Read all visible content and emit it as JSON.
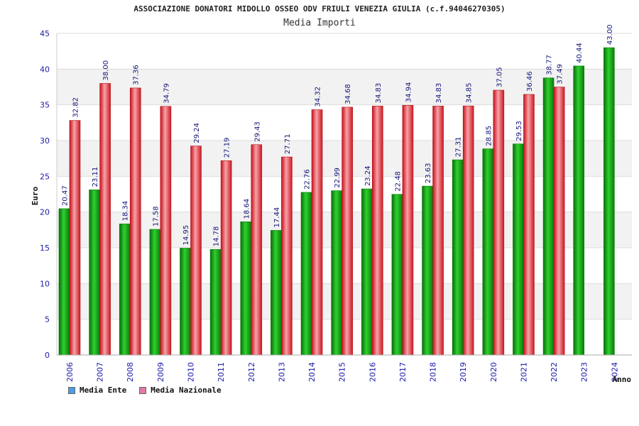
{
  "header": {
    "title": "ASSOCIAZIONE DONATORI MIDOLLO OSSEO ODV FRIULI VENEZIA GIULIA (c.f.94046270305)",
    "subtitle": "Media Importi"
  },
  "legend": {
    "items": [
      {
        "label": "Media Ente",
        "color": "#4d9be6"
      },
      {
        "label": "Media Nazionale",
        "color": "#e07aa8"
      }
    ]
  },
  "chart_data": {
    "type": "bar",
    "title": "Media Importi",
    "xlabel": "Anno",
    "ylabel": "Euro",
    "ylim": [
      0,
      45
    ],
    "yticks": [
      0,
      5,
      10,
      15,
      20,
      25,
      30,
      35,
      40,
      45
    ],
    "grid": true,
    "legend_position": "bottom-left",
    "categories": [
      "2006",
      "2007",
      "2008",
      "2009",
      "2010",
      "2011",
      "2012",
      "2013",
      "2014",
      "2015",
      "2016",
      "2017",
      "2018",
      "2019",
      "2020",
      "2021",
      "2022",
      "2023",
      "2024"
    ],
    "series": [
      {
        "name": "Media Ente",
        "color": "#22b022",
        "values": [
          20.47,
          23.11,
          18.34,
          17.58,
          14.95,
          14.78,
          18.64,
          17.44,
          22.76,
          22.99,
          23.24,
          22.48,
          23.63,
          27.31,
          28.85,
          29.53,
          38.77,
          40.44,
          43.0
        ],
        "labels": [
          "20.47",
          "23.11",
          "18.34",
          "17.58",
          "14.95",
          "14.78",
          "18.64",
          "17.44",
          "22.76",
          "22.99",
          "23.24",
          "22.48",
          "23.63",
          "27.31",
          "28.85",
          "29.53",
          "38.77",
          "40.44",
          "43.00"
        ]
      },
      {
        "name": "Media Nazionale",
        "color": "#e8323c",
        "values": [
          32.82,
          38.0,
          37.36,
          34.79,
          29.24,
          27.19,
          29.43,
          27.71,
          34.32,
          34.68,
          34.83,
          34.94,
          34.83,
          34.85,
          37.05,
          36.46,
          37.49,
          null,
          null
        ],
        "labels": [
          "32.82",
          "38.00",
          "37.36",
          "34.79",
          "29.24",
          "27.19",
          "29.43",
          "27.71",
          "34.32",
          "34.68",
          "34.83",
          "34.94",
          "34.83",
          "34.85",
          "37.05",
          "36.46",
          "37.49",
          "",
          ""
        ]
      }
    ]
  }
}
